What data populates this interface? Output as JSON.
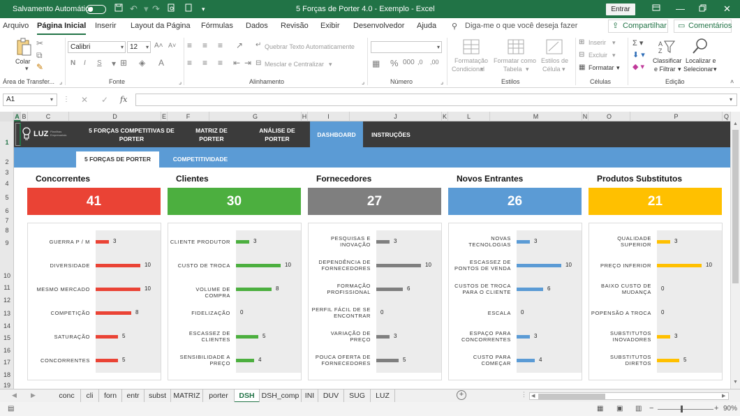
{
  "titlebar": {
    "autosave_label": "Salvamento Automático",
    "toggle_state": "Desativado",
    "doc_title": "5 Forças de Porter 4.0 - Exemplo  -  Excel",
    "signin_label": "Entrar"
  },
  "menu": {
    "items": [
      "Arquivo",
      "Página Inicial",
      "Inserir",
      "Layout da Página",
      "Fórmulas",
      "Dados",
      "Revisão",
      "Exibir",
      "Desenvolvedor",
      "Ajuda"
    ],
    "active": "Página Inicial",
    "tell_me": "Diga-me o que você deseja fazer",
    "share_label": "Compartilhar",
    "comments_label": "Comentários"
  },
  "ribbon": {
    "paste_label": "Colar",
    "clipboard_group": "Área de Transfer...",
    "font_name": "Calibri",
    "font_size": "12",
    "bold": "N",
    "italic": "I",
    "underline": "S",
    "font_group": "Fonte",
    "wrap_text": "Quebrar Texto Automaticamente",
    "merge_center": "Mesclar e Centralizar",
    "alignment_group": "Alinhamento",
    "number_format": "",
    "number_group": "Número",
    "conditional_format": [
      "Formatação",
      "Condicional"
    ],
    "format_table": [
      "Formatar como",
      "Tabela"
    ],
    "cell_styles": [
      "Estilos de",
      "Célula"
    ],
    "styles_group": "Estilos",
    "insert_label": "Inserir",
    "delete_label": "Excluir",
    "format_label": "Formatar",
    "cells_group": "Células",
    "sort_filter": [
      "Classificar",
      "e Filtrar"
    ],
    "find_select": [
      "Localizar e",
      "Selecionar"
    ],
    "editing_group": "Edição"
  },
  "formula_bar": {
    "name_box": "A1",
    "fx_symbol": "fx",
    "formula": ""
  },
  "columns": [
    "A",
    "B",
    "C",
    "D",
    "E",
    "F",
    "G",
    "H",
    "I",
    "J",
    "K",
    "L",
    "M",
    "N",
    "O",
    "P",
    "Q"
  ],
  "rows": [
    "1",
    "2",
    "3",
    "4",
    "5",
    "6",
    "7",
    "8",
    "9",
    "10",
    "11",
    "12",
    "13",
    "14",
    "15",
    "16",
    "17",
    "18",
    "19"
  ],
  "dashboard": {
    "logo_text": "LUZ",
    "logo_sub": "Planilhas Empresariais",
    "nav": [
      {
        "label": "5 FORÇAS COMPETITIVAS DE PORTER",
        "active": false
      },
      {
        "label": "MATRIZ DE PORTER",
        "active": false
      },
      {
        "label": "ANÁLISE DE PORTER",
        "active": false
      },
      {
        "label": "DASHBOARD",
        "active": true
      },
      {
        "label": "INSTRUÇÕES",
        "active": false
      }
    ],
    "subnav": [
      {
        "label": "5 FORÇAS DE PORTER",
        "active": true
      },
      {
        "label": "COMPETITIVIDADE",
        "active": false
      }
    ],
    "categories": [
      {
        "name": "Concorrentes",
        "total": "41",
        "color": "#ea4335",
        "items": [
          {
            "label": "GUERRA P / M",
            "value": 3
          },
          {
            "label": "DIVERSIDADE",
            "value": 10
          },
          {
            "label": "MESMO MERCADO",
            "value": 10
          },
          {
            "label": "COMPETIÇÃO",
            "value": 8
          },
          {
            "label": "SATURAÇÃO",
            "value": 5
          },
          {
            "label": "CONCORRENTES",
            "value": 5
          }
        ]
      },
      {
        "name": "Clientes",
        "total": "30",
        "color": "#4caf3f",
        "items": [
          {
            "label": "CLIENTE PRODUTOR",
            "value": 3
          },
          {
            "label": "CUSTO DE TROCA",
            "value": 10
          },
          {
            "label": "VOLUME DE COMPRA",
            "value": 8
          },
          {
            "label": "FIDELIZAÇÃO",
            "value": 0
          },
          {
            "label": "ESCASSEZ DE CLIENTES",
            "value": 5
          },
          {
            "label": "SENSIBILIDADE A PREÇO",
            "value": 4
          }
        ]
      },
      {
        "name": "Fornecedores",
        "total": "27",
        "color": "#7f7f7f",
        "items": [
          {
            "label": "PESQUISAS E INOVAÇÃO",
            "value": 3
          },
          {
            "label": "DEPENDÊNCIA DE FORNECEDORES",
            "value": 10
          },
          {
            "label": "FORMAÇÃO PROFISSIONAL",
            "value": 6
          },
          {
            "label": "PERFIL FÁCIL DE SE ENCONTRAR",
            "value": 0
          },
          {
            "label": "VARIAÇÃO DE PREÇO",
            "value": 3
          },
          {
            "label": "POUCA OFERTA DE FORNECEDORES",
            "value": 5
          }
        ]
      },
      {
        "name": "Novos Entrantes",
        "total": "26",
        "color": "#5b9bd5",
        "items": [
          {
            "label": "NOVAS TECNOLOGIAS",
            "value": 3
          },
          {
            "label": "ESCASSEZ DE PONTOS DE VENDA",
            "value": 10
          },
          {
            "label": "CUSTOS DE TROCA PARA O CLIENTE",
            "value": 6
          },
          {
            "label": "ESCALA",
            "value": 0
          },
          {
            "label": "ESPAÇO PARA CONCORRENTES",
            "value": 3
          },
          {
            "label": "CUSTO PARA COMEÇAR",
            "value": 4
          }
        ]
      },
      {
        "name": "Produtos Substitutos",
        "total": "21",
        "color": "#ffc000",
        "items": [
          {
            "label": "QUALIDADE SUPERIOR",
            "value": 3
          },
          {
            "label": "PREÇO INFERIOR",
            "value": 10
          },
          {
            "label": "BAIXO CUSTO DE MUDANÇA",
            "value": 0
          },
          {
            "label": "POPENSÃO A TROCA",
            "value": 0
          },
          {
            "label": "SUBSTITUTOS INOVADORES",
            "value": 3
          },
          {
            "label": "SUBSTITUTOS DIRETOS",
            "value": 5
          }
        ]
      }
    ]
  },
  "sheet_tabs": [
    "conc",
    "cli",
    "forn",
    "entr",
    "subst",
    "MATRIZ",
    "porter",
    "DSH",
    "DSH_comp",
    "INI",
    "DUV",
    "SUG",
    "LUZ"
  ],
  "active_sheet": "DSH",
  "status": {
    "zoom": "90%"
  }
}
